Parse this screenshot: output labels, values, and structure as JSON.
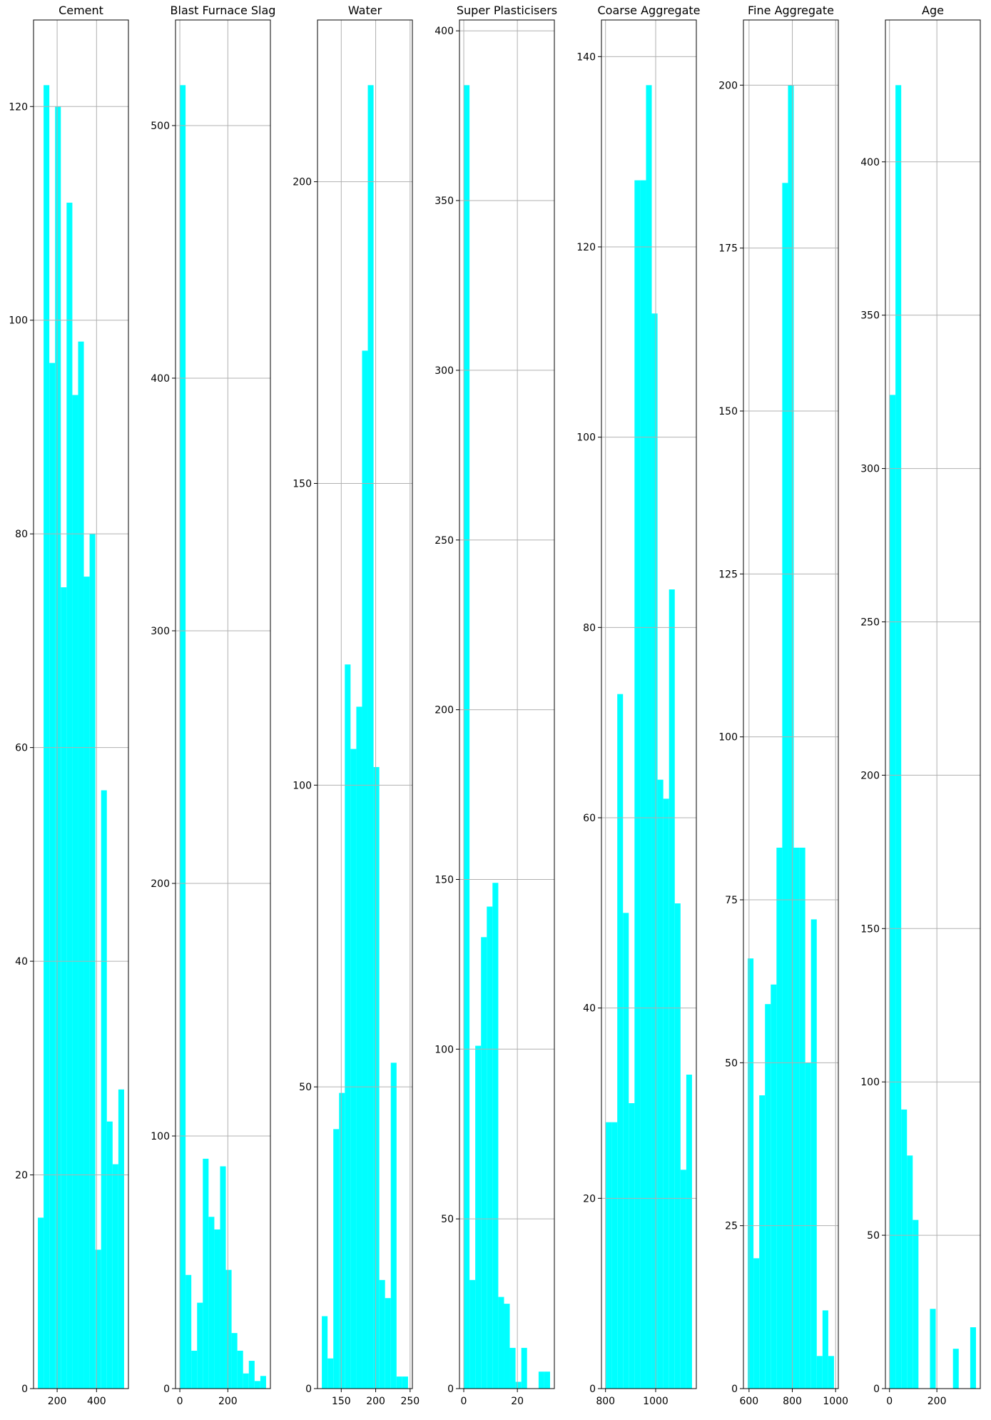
{
  "chart_data": [
    {
      "type": "histogram",
      "title": "Cement",
      "color": "#00ffff",
      "grid": true,
      "bins": [
        102,
        131.2,
        160.4,
        189.6,
        218.8,
        248,
        277.2,
        306.4,
        335.6,
        364.8,
        394,
        423.2,
        452.4,
        481.6,
        510.8,
        540
      ],
      "values": [
        16,
        122,
        96,
        120,
        75,
        111,
        93,
        98,
        76,
        80,
        13,
        56,
        25,
        21,
        28
      ],
      "xlim": [
        80.1,
        561.9
      ],
      "ylim": [
        0,
        128.1
      ],
      "xticks": [
        200,
        400
      ],
      "yticks": [
        0,
        20,
        40,
        60,
        80,
        100,
        120
      ]
    },
    {
      "type": "histogram",
      "title": "Blast Furnace Slag",
      "color": "#00ffff",
      "grid": true,
      "bins": [
        0,
        23.96,
        47.92,
        71.88,
        95.84,
        119.8,
        143.76,
        167.72,
        191.68,
        215.64,
        239.6,
        263.56,
        287.52,
        311.48,
        335.44,
        359.4
      ],
      "values": [
        516,
        45,
        15,
        34,
        91,
        68,
        63,
        88,
        47,
        22,
        15,
        6,
        11,
        3,
        5
      ],
      "xlim": [
        -18,
        377.4
      ],
      "ylim": [
        0,
        541.8
      ],
      "xticks": [
        0,
        200
      ],
      "yticks": [
        0,
        100,
        200,
        300,
        400,
        500
      ]
    },
    {
      "type": "histogram",
      "title": "Water",
      "color": "#00ffff",
      "grid": true,
      "bins": [
        121.8,
        130.15,
        138.49,
        146.84,
        155.19,
        163.53,
        171.88,
        180.23,
        188.57,
        196.92,
        205.27,
        213.61,
        221.96,
        230.31,
        238.65,
        247
      ],
      "values": [
        12,
        5,
        43,
        49,
        120,
        106,
        113,
        172,
        216,
        103,
        18,
        15,
        54,
        2,
        2
      ],
      "xlim": [
        115.5,
        253.3
      ],
      "ylim": [
        0,
        226.8
      ],
      "xticks": [
        150,
        200,
        250
      ],
      "yticks": [
        0,
        50,
        100,
        150,
        200
      ]
    },
    {
      "type": "histogram",
      "title": "Super Plasticisers",
      "color": "#00ffff",
      "grid": true,
      "bins": [
        0,
        2.15,
        4.29,
        6.44,
        8.59,
        10.73,
        12.88,
        15.03,
        17.17,
        19.32,
        21.47,
        23.61,
        25.76,
        27.91,
        30.05,
        32.2
      ],
      "values": [
        384,
        32,
        101,
        133,
        142,
        149,
        27,
        25,
        12,
        2,
        12,
        0,
        0,
        5,
        5
      ],
      "xlim": [
        -1.6,
        33.8
      ],
      "ylim": [
        0,
        403.2
      ],
      "xticks": [
        0,
        20
      ],
      "yticks": [
        0,
        50,
        100,
        150,
        200,
        250,
        300,
        350,
        400
      ]
    },
    {
      "type": "histogram",
      "title": "Coarse Aggregate",
      "color": "#00ffff",
      "grid": true,
      "bins": [
        801,
        823.93,
        846.87,
        869.8,
        892.73,
        915.67,
        938.6,
        961.53,
        984.47,
        1007.4,
        1030.33,
        1053.27,
        1076.2,
        1099.13,
        1122.07,
        1145
      ],
      "values": [
        28,
        28,
        73,
        50,
        30,
        127,
        127,
        137,
        113,
        64,
        62,
        84,
        51,
        23,
        33
      ],
      "xlim": [
        783.8,
        1162.2
      ],
      "ylim": [
        0,
        143.85
      ],
      "xticks": [
        800,
        1000
      ],
      "yticks": [
        0,
        20,
        40,
        60,
        80,
        100,
        120,
        140
      ]
    },
    {
      "type": "histogram",
      "title": "Fine Aggregate",
      "color": "#00ffff",
      "grid": true,
      "bins": [
        594,
        620.57,
        647.15,
        673.72,
        700.29,
        726.87,
        753.44,
        780.01,
        806.59,
        833.16,
        859.73,
        886.31,
        912.88,
        939.45,
        966.03,
        992.6
      ],
      "values": [
        66,
        20,
        45,
        59,
        62,
        83,
        185,
        200,
        83,
        83,
        50,
        72,
        5,
        12,
        5
      ],
      "xlim": [
        574.1,
        1012.5
      ],
      "ylim": [
        0,
        210
      ],
      "xticks": [
        600,
        800,
        1000
      ],
      "yticks": [
        0,
        25,
        50,
        75,
        100,
        125,
        150,
        175,
        200
      ]
    },
    {
      "type": "histogram",
      "title": "Age",
      "color": "#00ffff",
      "grid": true,
      "bins": [
        1,
        25.27,
        49.53,
        73.8,
        98.07,
        122.33,
        146.6,
        170.87,
        195.13,
        219.4,
        243.67,
        267.93,
        292.2,
        316.47,
        340.73,
        365
      ],
      "values": [
        324,
        425,
        91,
        76,
        55,
        0,
        0,
        26,
        0,
        0,
        0,
        13,
        0,
        0,
        20
      ],
      "xlim": [
        -17.2,
        383.2
      ],
      "ylim": [
        0,
        446.25
      ],
      "xticks": [
        0,
        200
      ],
      "yticks": [
        0,
        50,
        100,
        150,
        200,
        250,
        300,
        350,
        400
      ]
    }
  ]
}
